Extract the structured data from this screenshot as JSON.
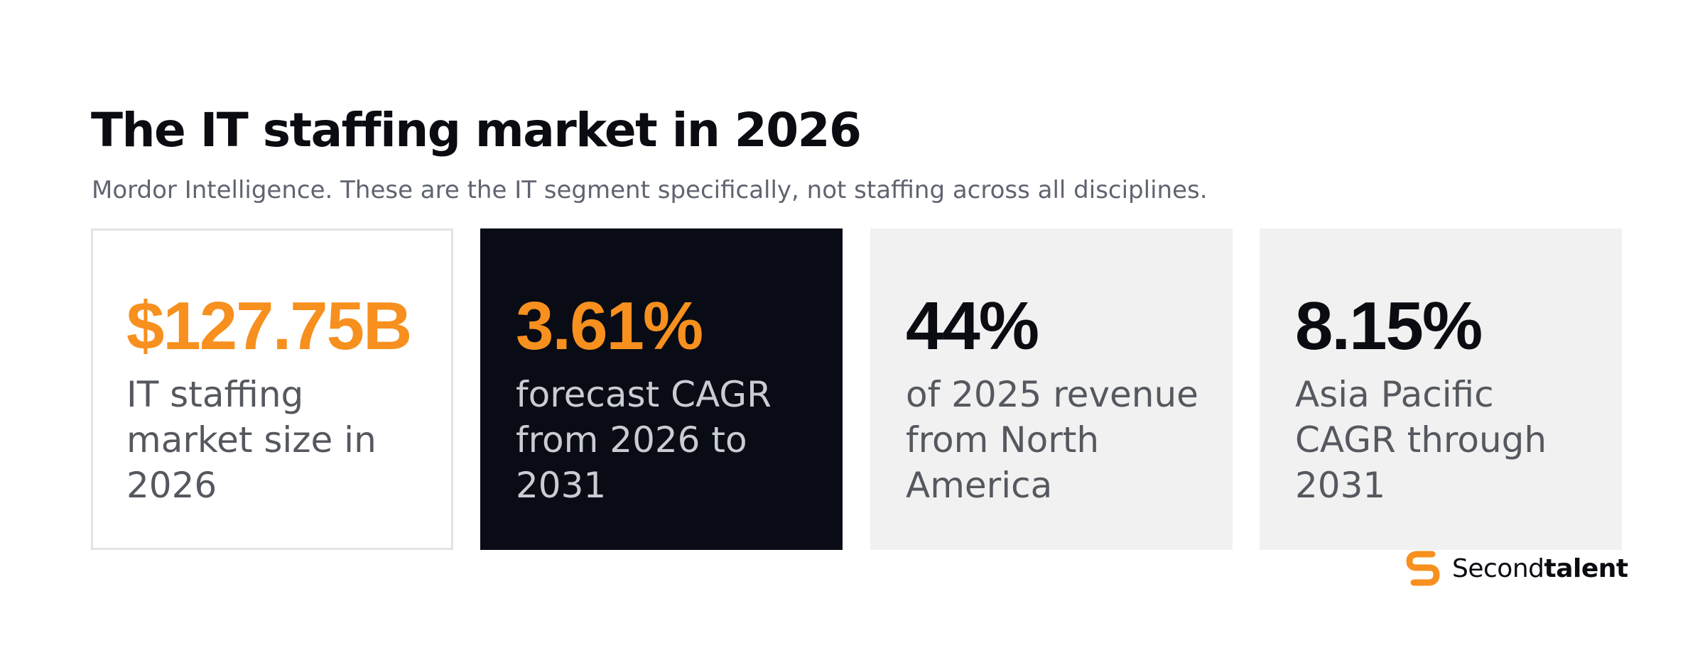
{
  "header": {
    "title": "The IT staffing market in 2026",
    "subtitle": "Mordor Intelligence. These are the IT segment specifically, not staffing across all disciplines."
  },
  "cards": [
    {
      "value": "$127.75B",
      "label": "IT staffing market size in 2026",
      "value_color": "#f7901e"
    },
    {
      "value": "3.61%",
      "label": "forecast CAGR from 2026 to 2031",
      "value_color": "#f7901e"
    },
    {
      "value": "44%",
      "label": "of 2025 revenue from North America",
      "value_color": "#0a0c12"
    },
    {
      "value": "8.15%",
      "label": "Asia Pacific CAGR through 2031",
      "value_color": "#0a0c12"
    }
  ],
  "brand": {
    "name_regular": "Second",
    "name_bold": "talent",
    "icon": "secondtalent-logo-icon",
    "accent_color": "#f7901e"
  }
}
